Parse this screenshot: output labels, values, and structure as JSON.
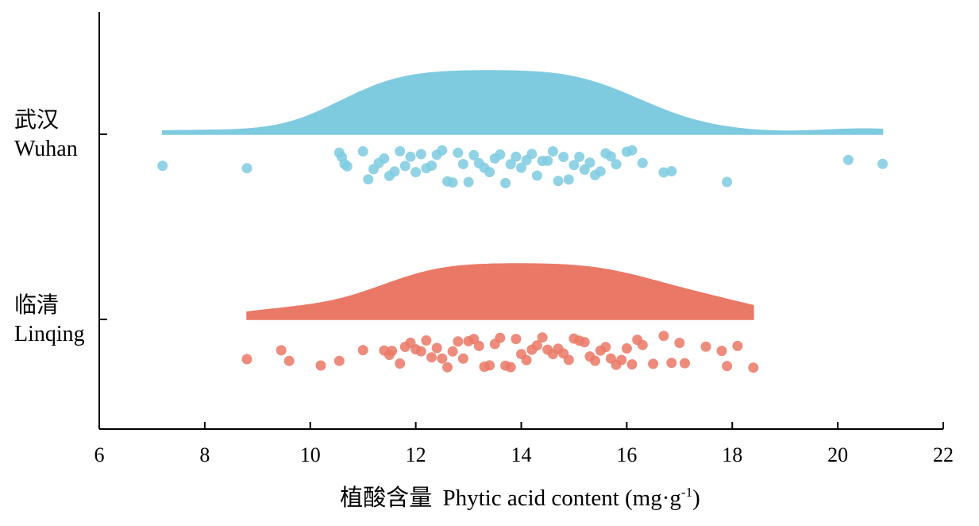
{
  "chart_data": {
    "type": "raincloud",
    "xlabel_cn": "植酸含量",
    "xlabel_en": "Phytic acid content (mg·g",
    "xlabel_sup": "-1",
    "xlabel_close": ")",
    "xlim": [
      6,
      22
    ],
    "xticks": [
      6,
      8,
      10,
      12,
      14,
      16,
      18,
      20,
      22
    ],
    "grid": false,
    "groups": [
      {
        "name_cn": "武汉",
        "name_en": "Wuhan",
        "color": "#7ecbe0",
        "density_range": [
          7.2,
          20.85
        ],
        "density_peak": 13.7,
        "points": [
          7.2,
          8.8,
          10.55,
          10.6,
          10.65,
          10.7,
          11.0,
          11.1,
          11.2,
          11.3,
          11.4,
          11.5,
          11.6,
          11.7,
          11.8,
          11.9,
          12.0,
          12.1,
          12.2,
          12.3,
          12.4,
          12.5,
          12.6,
          12.7,
          12.8,
          12.9,
          13.0,
          13.1,
          13.2,
          13.3,
          13.4,
          13.5,
          13.6,
          13.7,
          13.8,
          13.9,
          14.0,
          14.1,
          14.2,
          14.3,
          14.4,
          14.5,
          14.6,
          14.7,
          14.8,
          14.9,
          15.0,
          15.1,
          15.2,
          15.3,
          15.4,
          15.5,
          15.6,
          15.7,
          15.8,
          16.0,
          16.1,
          16.3,
          16.7,
          16.85,
          17.9,
          20.2,
          20.85
        ]
      },
      {
        "name_cn": "临清",
        "name_en": "Linqing",
        "color": "#ea7866",
        "density_range": [
          8.8,
          18.4
        ],
        "density_peak": 13.9,
        "points": [
          8.8,
          9.45,
          9.6,
          10.2,
          10.55,
          11.0,
          11.4,
          11.5,
          11.55,
          11.7,
          11.8,
          11.9,
          12.0,
          12.1,
          12.2,
          12.3,
          12.4,
          12.5,
          12.6,
          12.7,
          12.8,
          12.9,
          13.0,
          13.1,
          13.2,
          13.3,
          13.4,
          13.5,
          13.6,
          13.7,
          13.8,
          13.9,
          14.0,
          14.1,
          14.2,
          14.3,
          14.4,
          14.5,
          14.6,
          14.7,
          14.8,
          14.9,
          15.0,
          15.1,
          15.2,
          15.3,
          15.4,
          15.5,
          15.6,
          15.7,
          15.8,
          15.9,
          16.0,
          16.1,
          16.2,
          16.3,
          16.5,
          16.7,
          16.85,
          17.0,
          17.1,
          17.5,
          17.8,
          17.9,
          18.1,
          18.4
        ]
      }
    ]
  }
}
